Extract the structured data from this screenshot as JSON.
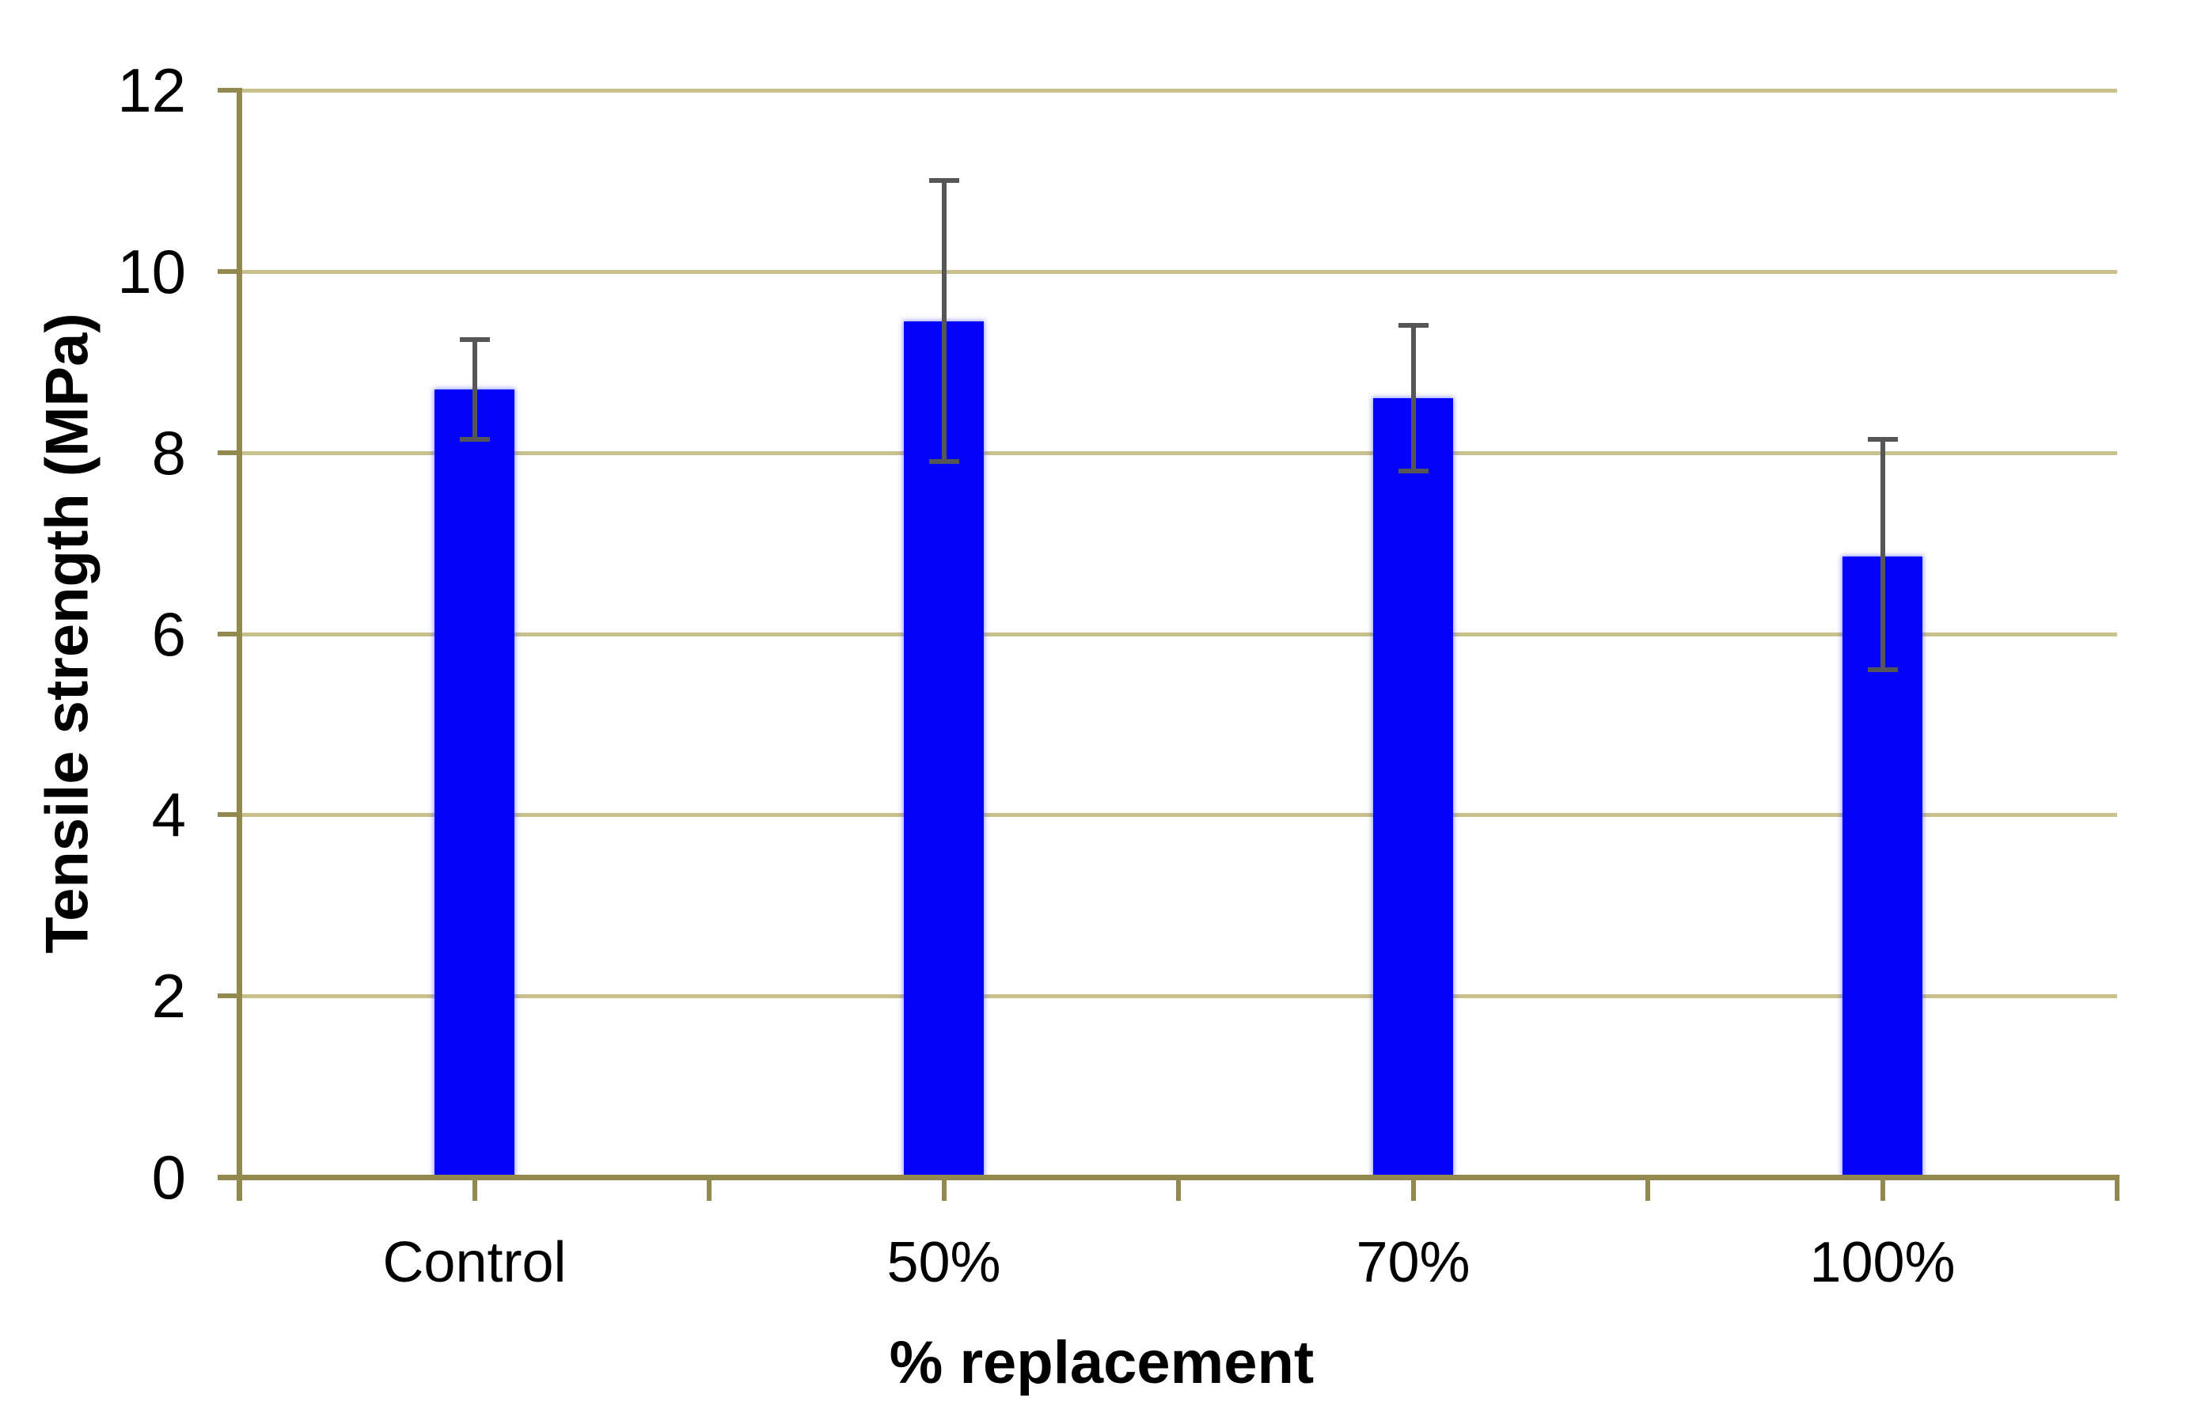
{
  "chart_data": {
    "type": "bar",
    "categories": [
      "Control",
      "50%",
      "70%",
      "100%"
    ],
    "values": [
      8.7,
      9.45,
      8.6,
      6.85
    ],
    "error_low": [
      8.15,
      7.9,
      7.8,
      5.6
    ],
    "error_high": [
      9.25,
      11.0,
      9.4,
      8.15
    ],
    "xlabel": "% replacement",
    "ylabel": "Tensile strength (MPa)",
    "ylim": [
      0,
      12
    ],
    "yticks": [
      0,
      2,
      4,
      6,
      8,
      10,
      12
    ],
    "grid": "horizontal-only",
    "legend": "none",
    "colors": {
      "bar": "#0303fa",
      "bar_glow": "rgba(60,60,255,0.55)",
      "gridline": "#c8c08d",
      "axis": "#92894f",
      "error_bar": "#565656",
      "text": "#000000",
      "background": "#ffffff"
    }
  }
}
